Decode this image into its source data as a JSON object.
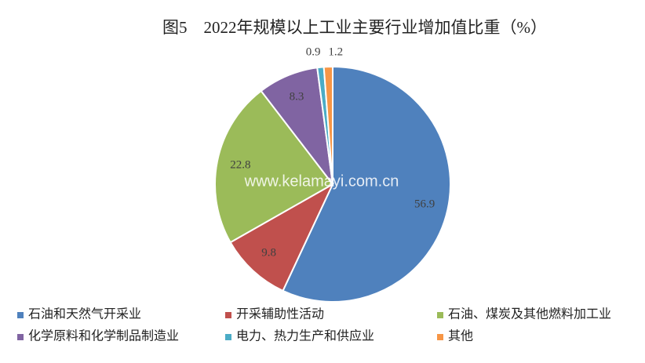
{
  "chart_data": {
    "type": "pie",
    "title": "图5　2022年规模以上工业主要行业增加值比重（%）",
    "watermark": "www.kelamayi.com.cn",
    "categories": [
      "石油和天然气开采业",
      "开采辅助性活动",
      "石油、煤炭及其他燃料加工业",
      "化学原料和化学制品制造业",
      "电力、热力生产和供应业",
      "其他"
    ],
    "values": [
      56.9,
      9.8,
      22.8,
      8.3,
      0.9,
      1.2
    ],
    "colors": [
      "#4f81bd",
      "#c0504d",
      "#9bbb59",
      "#8064a2",
      "#4bacc6",
      "#f79646"
    ],
    "legend": "bottom"
  }
}
